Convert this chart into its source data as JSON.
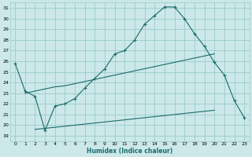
{
  "xlabel": "Humidex (Indice chaleur)",
  "bg_color": "#cce8e8",
  "grid_color": "#99cccc",
  "line_color": "#1a6b6b",
  "xlim": [
    -0.5,
    23.5
  ],
  "ylim": [
    18.5,
    31.5
  ],
  "xticks": [
    0,
    1,
    2,
    3,
    4,
    5,
    6,
    7,
    8,
    9,
    10,
    11,
    12,
    13,
    14,
    15,
    16,
    17,
    18,
    19,
    20,
    21,
    22,
    23
  ],
  "yticks": [
    19,
    20,
    21,
    22,
    23,
    24,
    25,
    26,
    27,
    28,
    29,
    30,
    31
  ],
  "curve_x": [
    0,
    1,
    2,
    3,
    4,
    5,
    6,
    7,
    8,
    9,
    10,
    11,
    12,
    13,
    14,
    15,
    16,
    17,
    18,
    19,
    20,
    21,
    22,
    23
  ],
  "curve_y": [
    25.8,
    23.2,
    22.7,
    19.5,
    21.8,
    22.0,
    22.5,
    23.5,
    24.4,
    25.3,
    26.7,
    27.0,
    28.0,
    29.5,
    30.3,
    31.1,
    31.1,
    30.0,
    28.6,
    27.4,
    25.9,
    24.7,
    22.3,
    20.7
  ],
  "line_upper_x": [
    1,
    2,
    3,
    4,
    5,
    6,
    7,
    8,
    9,
    10,
    11,
    12,
    13,
    14,
    15,
    16,
    17,
    18,
    19,
    20
  ],
  "line_upper_y": [
    23.0,
    23.2,
    23.4,
    23.6,
    23.7,
    23.9,
    24.1,
    24.3,
    24.5,
    24.7,
    24.9,
    25.1,
    25.3,
    25.5,
    25.7,
    25.9,
    26.1,
    26.3,
    26.5,
    26.7
  ],
  "line_lower_x": [
    2,
    3,
    4,
    5,
    6,
    7,
    8,
    9,
    10,
    11,
    12,
    13,
    14,
    15,
    16,
    17,
    18,
    19,
    20
  ],
  "line_lower_y": [
    19.6,
    19.7,
    19.8,
    19.9,
    20.0,
    20.1,
    20.2,
    20.3,
    20.4,
    20.5,
    20.6,
    20.7,
    20.8,
    20.9,
    21.0,
    21.1,
    21.2,
    21.3,
    21.4
  ]
}
